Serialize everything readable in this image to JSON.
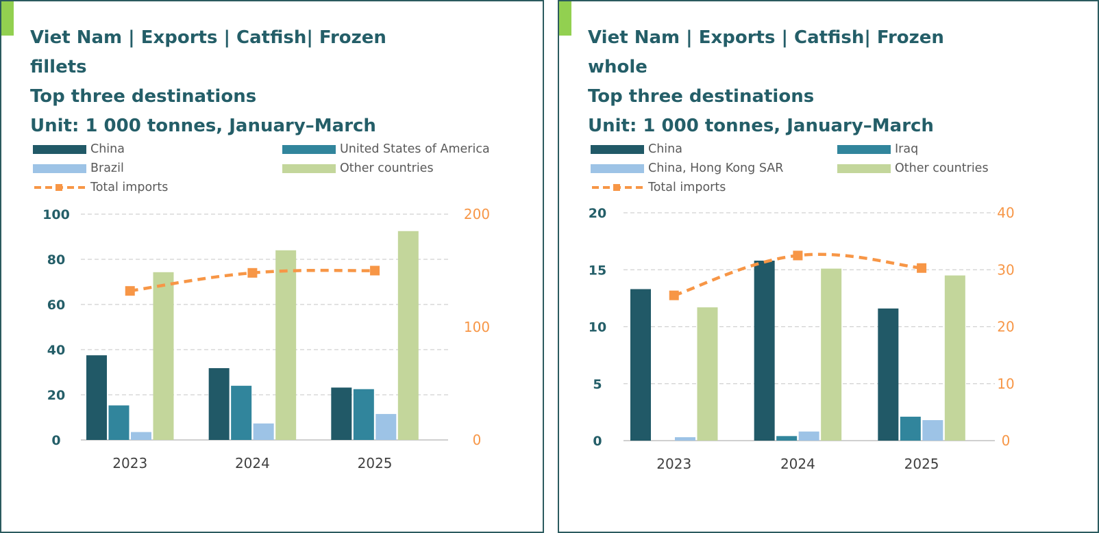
{
  "colors": {
    "border": "#2b5a5e",
    "accent": "#92d050",
    "title": "#245e68",
    "left_axis": "#245e68",
    "right_axis": "#f79646",
    "tick_x": "#404040",
    "grid": "#d0d0d0",
    "series": {
      "china": "#215967",
      "second": "#31859c",
      "third": "#9dc3e6",
      "other": "#c3d69b",
      "total": "#f79646"
    }
  },
  "panels": [
    {
      "title_lines": [
        "Viet Nam  |  Exports  |  Catfish|  Frozen",
        "fillets",
        "Top three destinations",
        "Unit: 1 000 tonnes, January–March"
      ],
      "legend": [
        {
          "label": "China",
          "key": "china",
          "kind": "bar"
        },
        {
          "label": "United States of America",
          "key": "second",
          "kind": "bar"
        },
        {
          "label": "Brazil",
          "key": "third",
          "kind": "bar"
        },
        {
          "label": "Other countries",
          "key": "other",
          "kind": "bar"
        },
        {
          "label": "Total imports",
          "key": "total",
          "kind": "line"
        }
      ]
    },
    {
      "title_lines": [
        "Viet Nam  |  Exports  |  Catfish|  Frozen",
        "whole",
        "Top three destinations",
        "Unit: 1 000 tonnes, January–March"
      ],
      "legend": [
        {
          "label": "China",
          "key": "china",
          "kind": "bar"
        },
        {
          "label": "Iraq",
          "key": "second",
          "kind": "bar"
        },
        {
          "label": "China, Hong Kong SAR",
          "key": "third",
          "kind": "bar"
        },
        {
          "label": "Other countries",
          "key": "other",
          "kind": "bar"
        },
        {
          "label": "Total imports",
          "key": "total",
          "kind": "line"
        }
      ]
    }
  ],
  "chart_data": [
    {
      "type": "bar",
      "title": "Viet Nam | Exports | Catfish| Frozen fillets Top three destinations Unit: 1 000 tonnes, January–March",
      "categories": [
        "2023",
        "2024",
        "2025"
      ],
      "series": [
        {
          "name": "China",
          "key": "china",
          "axis": "left",
          "values": [
            37.5,
            31.8,
            23.2
          ]
        },
        {
          "name": "United States of America",
          "key": "second",
          "axis": "left",
          "values": [
            15.3,
            24.0,
            22.5
          ]
        },
        {
          "name": "Brazil",
          "key": "third",
          "axis": "left",
          "values": [
            3.5,
            7.3,
            11.5
          ]
        },
        {
          "name": "Other countries",
          "key": "other",
          "axis": "left",
          "values": [
            74.3,
            84.0,
            92.5
          ]
        },
        {
          "name": "Total imports",
          "key": "total",
          "axis": "right",
          "type": "line",
          "values": [
            132,
            148,
            150
          ]
        }
      ],
      "ylim": [
        0,
        100
      ],
      "yticks": [
        "0",
        "20",
        "40",
        "60",
        "80",
        "100"
      ],
      "y2lim": [
        0,
        200
      ],
      "y2ticks": [
        "0",
        "100",
        "200"
      ],
      "grid": true,
      "legend_position": "top"
    },
    {
      "type": "bar",
      "title": "Viet Nam | Exports | Catfish| Frozen whole Top three destinations Unit: 1 000 tonnes, January–March",
      "categories": [
        "2023",
        "2024",
        "2025"
      ],
      "series": [
        {
          "name": "China",
          "key": "china",
          "axis": "left",
          "values": [
            13.3,
            15.8,
            11.6
          ]
        },
        {
          "name": "Iraq",
          "key": "second",
          "axis": "left",
          "values": [
            0.0,
            0.4,
            2.1
          ]
        },
        {
          "name": "China, Hong Kong SAR",
          "key": "third",
          "axis": "left",
          "values": [
            0.3,
            0.8,
            1.8
          ]
        },
        {
          "name": "Other countries",
          "key": "other",
          "axis": "left",
          "values": [
            11.7,
            15.1,
            14.5
          ]
        },
        {
          "name": "Total imports",
          "key": "total",
          "axis": "right",
          "type": "line",
          "values": [
            25.5,
            32.5,
            30.3
          ]
        }
      ],
      "ylim": [
        0,
        20
      ],
      "yticks": [
        "0",
        "5",
        "10",
        "15",
        "20"
      ],
      "y2lim": [
        0,
        40
      ],
      "y2ticks": [
        "0",
        "10",
        "20",
        "30",
        "40"
      ],
      "grid": true,
      "legend_position": "top"
    }
  ]
}
